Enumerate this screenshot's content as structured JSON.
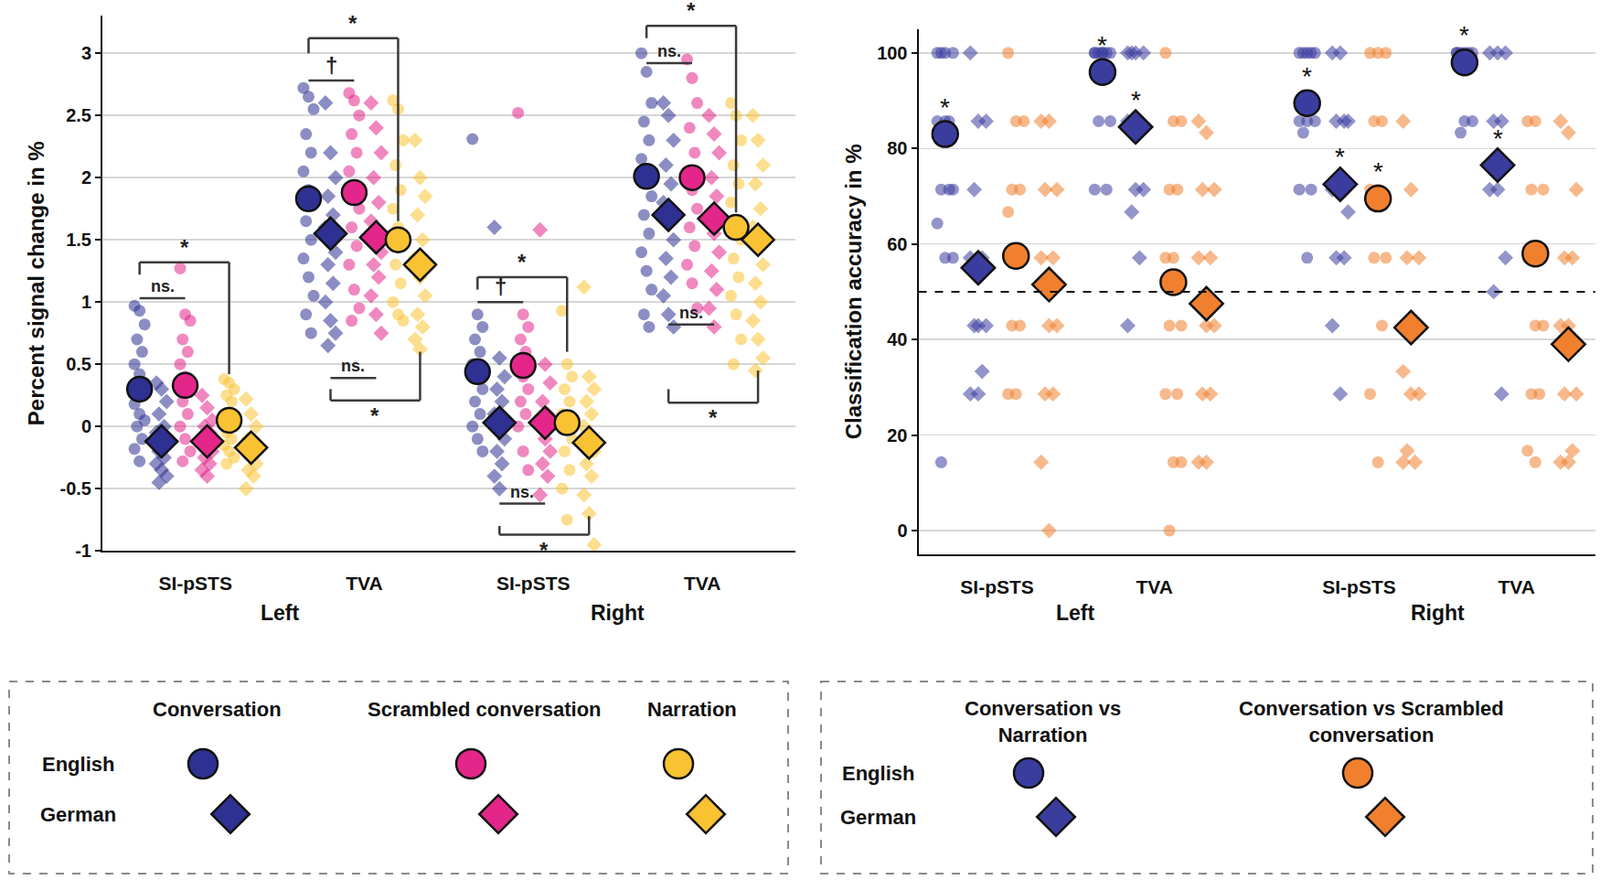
{
  "chart_data": [
    {
      "type": "scatter",
      "y_label": "Percent signal change in %",
      "categories": [
        "SI-pSTS",
        "TVA",
        "SI-pSTS",
        "TVA"
      ],
      "category_groups": [
        "Left",
        "Left",
        "Right",
        "Right"
      ],
      "ylim": [
        -1,
        3.3
      ],
      "yticks": [
        -1,
        -0.5,
        0,
        0.5,
        1,
        1.5,
        2,
        2.5,
        3
      ],
      "grid": true,
      "legend": "bottom",
      "series": [
        {
          "name": "Conversation",
          "language": "English",
          "color": "#2e3192",
          "marker": "circle",
          "means": [
            0.3,
            1.83,
            0.44,
            2.01
          ],
          "values": [
            [
              0.97,
              0.93,
              0.82,
              0.7,
              0.6,
              0.5,
              0.42,
              0.35,
              0.3,
              0.25,
              0.18,
              0.1,
              0.05,
              0,
              -0.1,
              -0.18,
              -0.28
            ],
            [
              2.72,
              2.65,
              2.55,
              2.35,
              2.2,
              2.05,
              1.9,
              1.8,
              1.65,
              1.5,
              1.35,
              1.2,
              1.05,
              0.9,
              0.75
            ],
            [
              2.31,
              0.9,
              0.8,
              0.7,
              0.6,
              0.5,
              0.4,
              0.3,
              0.2,
              0.1,
              0,
              -0.1,
              -0.2
            ],
            [
              3.0,
              2.85,
              2.6,
              2.45,
              2.3,
              2.15,
              2.0,
              1.85,
              1.7,
              1.55,
              1.4,
              1.25,
              1.1,
              0.9,
              0.8
            ]
          ]
        },
        {
          "name": "Conversation",
          "language": "German",
          "color": "#2e3192",
          "marker": "diamond",
          "means": [
            -0.12,
            1.55,
            0.03,
            1.7
          ],
          "values": [
            [
              0.35,
              0.3,
              0.2,
              0.1,
              0,
              -0.05,
              -0.1,
              -0.15,
              -0.2,
              -0.25,
              -0.3,
              -0.35,
              -0.4,
              -0.45
            ],
            [
              2.6,
              2.2,
              2.0,
              1.85,
              1.7,
              1.6,
              1.5,
              1.4,
              1.3,
              1.15,
              1.0,
              0.85,
              0.75,
              0.65
            ],
            [
              1.6,
              0.55,
              0.4,
              0.3,
              0.2,
              0.1,
              0,
              -0.1,
              -0.2,
              -0.3,
              -0.4,
              -0.5
            ],
            [
              2.6,
              2.5,
              2.3,
              2.1,
              1.95,
              1.8,
              1.65,
              1.5,
              1.35,
              1.2,
              1.05,
              0.9,
              0.8
            ]
          ]
        },
        {
          "name": "Scrambled conversation",
          "language": "English",
          "color": "#e4268a",
          "marker": "circle",
          "means": [
            0.33,
            1.88,
            0.49,
            2.0
          ],
          "values": [
            [
              1.27,
              0.9,
              0.85,
              0.7,
              0.6,
              0.5,
              0.4,
              0.3,
              0.2,
              0.1,
              0,
              -0.1,
              -0.2,
              -0.28
            ],
            [
              2.68,
              2.62,
              2.5,
              2.35,
              2.2,
              2.05,
              1.9,
              1.75,
              1.6,
              1.45,
              1.3,
              1.1,
              0.95,
              0.85
            ],
            [
              2.52,
              0.9,
              0.8,
              0.7,
              0.6,
              0.5,
              0.4,
              0.3,
              0.2,
              0.1,
              0,
              -0.2,
              -0.35
            ],
            [
              2.95,
              2.8,
              2.6,
              2.4,
              2.2,
              2.05,
              1.9,
              1.75,
              1.6,
              1.45,
              1.3,
              1.15,
              0.95
            ]
          ]
        },
        {
          "name": "Scrambled conversation",
          "language": "German",
          "color": "#e4268a",
          "marker": "diamond",
          "means": [
            -0.12,
            1.52,
            0.03,
            1.67
          ],
          "values": [
            [
              0.25,
              0.15,
              0.05,
              0,
              -0.05,
              -0.1,
              -0.15,
              -0.2,
              -0.25,
              -0.3,
              -0.35,
              -0.4
            ],
            [
              2.6,
              2.4,
              2.2,
              2.0,
              1.8,
              1.65,
              1.5,
              1.4,
              1.3,
              1.2,
              1.05,
              0.9,
              0.75
            ],
            [
              1.58,
              0.5,
              0.35,
              0.2,
              0.1,
              0,
              -0.1,
              -0.2,
              -0.3,
              -0.4,
              -0.55
            ],
            [
              2.5,
              2.35,
              2.2,
              2.0,
              1.85,
              1.7,
              1.55,
              1.4,
              1.25,
              1.1,
              0.95,
              0.8
            ]
          ]
        },
        {
          "name": "Narration",
          "language": "English",
          "color": "#f9c232",
          "marker": "circle",
          "means": [
            0.05,
            1.5,
            0.03,
            1.6
          ],
          "values": [
            [
              0.38,
              0.35,
              0.3,
              0.25,
              0.2,
              0.1,
              0.05,
              0,
              -0.05,
              -0.1,
              -0.15,
              -0.2,
              -0.25,
              -0.3
            ],
            [
              2.62,
              2.55,
              2.3,
              2.1,
              1.9,
              1.75,
              1.6,
              1.45,
              1.3,
              1.15,
              1.0,
              0.9,
              0.85
            ],
            [
              0.93,
              0.5,
              0.4,
              0.3,
              0.2,
              0.1,
              0,
              -0.1,
              -0.2,
              -0.35,
              -0.5,
              -0.75
            ],
            [
              2.6,
              2.5,
              2.3,
              2.1,
              1.95,
              1.8,
              1.65,
              1.5,
              1.35,
              1.2,
              1.05,
              0.9,
              0.7,
              0.5
            ]
          ]
        },
        {
          "name": "Narration",
          "language": "German",
          "color": "#f9c232",
          "marker": "diamond",
          "means": [
            -0.17,
            1.3,
            -0.13,
            1.5
          ],
          "values": [
            [
              0.22,
              0.1,
              0,
              -0.1,
              -0.15,
              -0.2,
              -0.25,
              -0.3,
              -0.35,
              -0.4,
              -0.5
            ],
            [
              2.3,
              2.0,
              1.85,
              1.7,
              1.5,
              1.35,
              1.2,
              1.05,
              0.9,
              0.8,
              0.7,
              0.62
            ],
            [
              1.12,
              0.4,
              0.3,
              0.2,
              0.1,
              0,
              -0.1,
              -0.2,
              -0.3,
              -0.4,
              -0.55,
              -0.7,
              -0.95
            ],
            [
              2.5,
              2.3,
              2.1,
              1.95,
              1.75,
              1.6,
              1.45,
              1.3,
              1.15,
              1.0,
              0.85,
              0.7,
              0.55,
              0.45
            ]
          ]
        }
      ],
      "brackets": [
        {
          "category": 0,
          "from": 0,
          "to": 2,
          "y": 1.03,
          "text": "ns."
        },
        {
          "category": 0,
          "from": 0,
          "to": 4,
          "y": 1.32,
          "legs": [
            1.22,
            0.42
          ],
          "text": "*"
        },
        {
          "category": 1,
          "from": 0,
          "to": 2,
          "y": 2.78,
          "text": "†"
        },
        {
          "category": 1,
          "from": 0,
          "to": 4,
          "y": 3.12,
          "legs": [
            3.0,
            1.65
          ],
          "text": "*"
        },
        {
          "category": 1,
          "from": 1,
          "to": 3,
          "y": 0.39,
          "text": "ns."
        },
        {
          "category": 1,
          "from": 1,
          "to": 5,
          "y": 0.21,
          "legs": [
            0.3,
            0.6
          ],
          "text": "*"
        },
        {
          "category": 2,
          "from": 0,
          "to": 2,
          "y": 1.0,
          "text": "†"
        },
        {
          "category": 2,
          "from": 0,
          "to": 4,
          "y": 1.2,
          "legs": [
            1.1,
            0.6
          ],
          "text": "*"
        },
        {
          "category": 2,
          "from": 1,
          "to": 3,
          "y": -0.62,
          "text": "ns."
        },
        {
          "category": 2,
          "from": 1,
          "to": 5,
          "y": -0.87,
          "legs": [
            -0.8,
            -0.72
          ],
          "text": "*"
        },
        {
          "category": 3,
          "from": 0,
          "to": 2,
          "y": 2.92,
          "text": "ns."
        },
        {
          "category": 3,
          "from": 0,
          "to": 4,
          "y": 3.22,
          "legs": [
            3.12,
            1.72
          ],
          "text": "*"
        },
        {
          "category": 3,
          "from": 1,
          "to": 3,
          "y": 0.82,
          "text": "ns."
        },
        {
          "category": 3,
          "from": 1,
          "to": 5,
          "y": 0.19,
          "legs": [
            0.3,
            0.45
          ],
          "text": "*"
        }
      ]
    },
    {
      "type": "scatter",
      "y_label": "Classification accuracy in %",
      "categories": [
        "SI-pSTS",
        "TVA",
        "SI-pSTS",
        "TVA"
      ],
      "category_groups": [
        "Left",
        "Left",
        "Right",
        "Right"
      ],
      "ylim": [
        -5,
        105
      ],
      "yticks": [
        0,
        20,
        40,
        60,
        80,
        100
      ],
      "grid": true,
      "legend": "bottom",
      "chance_level": 50,
      "series": [
        {
          "name": "Conversation vs\nNarration",
          "language": "English",
          "color": "#3a3d9e",
          "marker": "circle",
          "means": [
            83,
            96,
            89.5,
            98
          ],
          "significance": [
            "*",
            "*",
            "*",
            "*"
          ],
          "values": [
            [
              100,
              100,
              100,
              100,
              85.7,
              85.7,
              85.7,
              71.4,
              71.4,
              71.4,
              64.3,
              57.1,
              57.1,
              14.3
            ],
            [
              100,
              100,
              100,
              100,
              100,
              100,
              100,
              85.7,
              85.7,
              71.4,
              71.4
            ],
            [
              100,
              100,
              100,
              100,
              100,
              85.7,
              85.7,
              85.7,
              83.3,
              71.4,
              71.4,
              57.1
            ],
            [
              100,
              100,
              100,
              100,
              100,
              100,
              85.7,
              85.7,
              83.3
            ]
          ]
        },
        {
          "name": "Conversation vs\nNarration",
          "language": "German",
          "color": "#3a3d9e",
          "marker": "diamond",
          "means": [
            55,
            84.5,
            72.5,
            76.5
          ],
          "significance": [
            null,
            "*",
            "*",
            "*"
          ],
          "values": [
            [
              100,
              85.7,
              85.7,
              71.4,
              57.1,
              57.1,
              42.9,
              42.9,
              42.9,
              33.3,
              28.6,
              28.6
            ],
            [
              100,
              100,
              100,
              100,
              85.7,
              85.7,
              71.4,
              71.4,
              66.7,
              57.1,
              42.9
            ],
            [
              100,
              100,
              85.7,
              85.7,
              85.7,
              71.4,
              71.4,
              66.7,
              57.1,
              57.1,
              42.9,
              28.6
            ],
            [
              100,
              100,
              100,
              85.7,
              85.7,
              71.4,
              71.4,
              57.1,
              50,
              28.6
            ]
          ]
        },
        {
          "name": "Conversation vs Scrambled\nconversation",
          "language": "English",
          "color": "#f0802e",
          "marker": "circle",
          "means": [
            57.5,
            52,
            69.5,
            58
          ],
          "significance": [
            null,
            null,
            "*",
            null
          ],
          "values": [
            [
              100,
              85.7,
              85.7,
              71.4,
              71.4,
              66.7,
              57.1,
              57.1,
              42.9,
              42.9,
              28.6,
              28.6
            ],
            [
              100,
              85.7,
              85.7,
              71.4,
              71.4,
              57.1,
              57.1,
              42.9,
              42.9,
              28.6,
              28.6,
              14.3,
              14.3,
              0
            ],
            [
              100,
              100,
              100,
              85.7,
              85.7,
              71.4,
              71.4,
              57.1,
              57.1,
              42.9,
              28.6,
              14.3
            ],
            [
              85.7,
              85.7,
              71.4,
              71.4,
              57.1,
              57.1,
              42.9,
              42.9,
              28.6,
              28.6,
              16.7,
              14.3
            ]
          ]
        },
        {
          "name": "Conversation vs Scrambled\nconversation",
          "language": "German",
          "color": "#f0802e",
          "marker": "diamond",
          "means": [
            51.5,
            47.5,
            42.5,
            39
          ],
          "significance": [
            null,
            null,
            null,
            null
          ],
          "values": [
            [
              85.7,
              85.7,
              71.4,
              71.4,
              57.1,
              57.1,
              42.9,
              42.9,
              28.6,
              28.6,
              14.3,
              0
            ],
            [
              85.7,
              83.3,
              71.4,
              71.4,
              57.1,
              57.1,
              42.9,
              42.9,
              28.6,
              28.6,
              14.3,
              14.3
            ],
            [
              85.7,
              71.4,
              57.1,
              57.1,
              42.9,
              33.3,
              28.6,
              28.6,
              16.7,
              14.3,
              14.3
            ],
            [
              85.7,
              83.3,
              71.4,
              57.1,
              57.1,
              42.9,
              42.9,
              28.6,
              28.6,
              16.7,
              14.3,
              14.3
            ]
          ]
        }
      ]
    }
  ]
}
